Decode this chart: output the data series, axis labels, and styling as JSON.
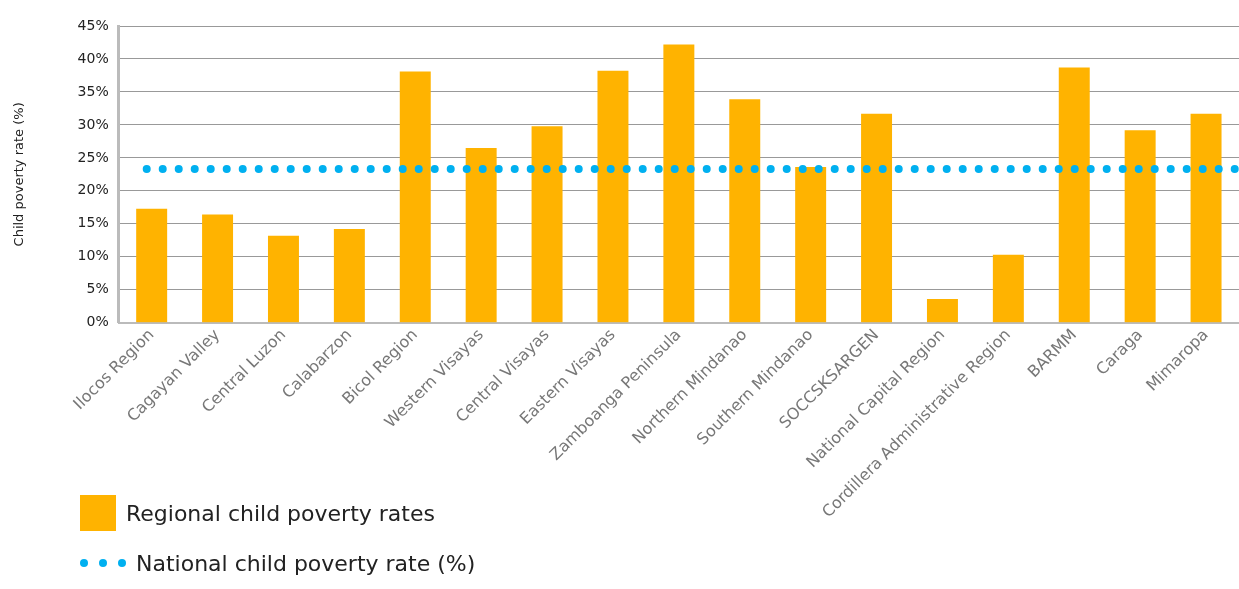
{
  "chart_data": {
    "type": "bar",
    "ylabel": "Child poverty rate (%)",
    "categories": [
      "Ilocos Region",
      "Cagayan Valley",
      "Central Luzon",
      "Calabarzon",
      "Bicol Region",
      "Western Visayas",
      "Central Visayas",
      "Eastern Visayas",
      "Zamboanga Peninsula",
      "Northern Mindanao",
      "Southern Mindanao",
      "SOCCSKSARGEN",
      "National Capital Region",
      "Cordillera Administrative Region",
      "BARMM",
      "Caraga",
      "Mimaropa"
    ],
    "series": [
      {
        "name": "Regional child poverty rates",
        "color": "#ffb300",
        "values": [
          17.3,
          16.4,
          13.2,
          14.2,
          38.1,
          26.5,
          29.8,
          38.2,
          42.2,
          33.9,
          23.6,
          31.7,
          3.6,
          10.3,
          38.7,
          29.2,
          31.7
        ]
      }
    ],
    "ylim": [
      0,
      45
    ],
    "yticks": [
      {
        "value": 0,
        "label": "0%"
      },
      {
        "value": 5,
        "label": "5%"
      },
      {
        "value": 10,
        "label": "10%"
      },
      {
        "value": 15,
        "label": "15%"
      },
      {
        "value": 20,
        "label": "20%"
      },
      {
        "value": 25,
        "label": "25%"
      },
      {
        "value": 30,
        "label": "30%"
      },
      {
        "value": 35,
        "label": "35%"
      },
      {
        "value": 40,
        "label": "40%"
      },
      {
        "value": 45,
        "label": "45%"
      }
    ],
    "ref_lines": [
      {
        "axis": "y",
        "value": 23.3,
        "label": "National child poverty rate (%)",
        "color": "#00b0f0",
        "line_style": "dotted"
      }
    ],
    "grid": "y",
    "legend": "bottom left"
  }
}
